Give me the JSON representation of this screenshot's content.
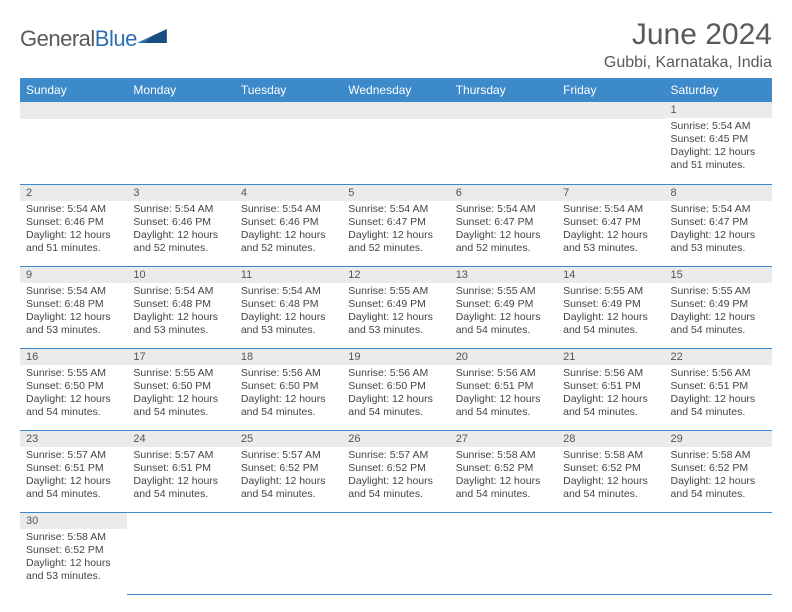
{
  "brand": {
    "part1": "General",
    "part2": "Blue"
  },
  "title": "June 2024",
  "location": "Gubbi, Karnataka, India",
  "colors": {
    "header_bg": "#3c8ac9",
    "header_text": "#ffffff",
    "daynum_bg": "#ebebeb",
    "cell_border": "#3c8ac9",
    "body_text": "#444444",
    "title_text": "#5a5a5a",
    "brand_gray": "#5a5a5a",
    "brand_blue": "#2e6fb3",
    "page_bg": "#ffffff"
  },
  "typography": {
    "title_fontsize": 30,
    "location_fontsize": 16,
    "header_fontsize": 12,
    "body_fontsize": 10.5,
    "font_family": "Arial"
  },
  "weekdays": [
    "Sunday",
    "Monday",
    "Tuesday",
    "Wednesday",
    "Thursday",
    "Friday",
    "Saturday"
  ],
  "leading_blanks": 6,
  "days": [
    {
      "n": 1,
      "sunrise": "5:54 AM",
      "sunset": "6:45 PM",
      "daylight": "12 hours and 51 minutes."
    },
    {
      "n": 2,
      "sunrise": "5:54 AM",
      "sunset": "6:46 PM",
      "daylight": "12 hours and 51 minutes."
    },
    {
      "n": 3,
      "sunrise": "5:54 AM",
      "sunset": "6:46 PM",
      "daylight": "12 hours and 52 minutes."
    },
    {
      "n": 4,
      "sunrise": "5:54 AM",
      "sunset": "6:46 PM",
      "daylight": "12 hours and 52 minutes."
    },
    {
      "n": 5,
      "sunrise": "5:54 AM",
      "sunset": "6:47 PM",
      "daylight": "12 hours and 52 minutes."
    },
    {
      "n": 6,
      "sunrise": "5:54 AM",
      "sunset": "6:47 PM",
      "daylight": "12 hours and 52 minutes."
    },
    {
      "n": 7,
      "sunrise": "5:54 AM",
      "sunset": "6:47 PM",
      "daylight": "12 hours and 53 minutes."
    },
    {
      "n": 8,
      "sunrise": "5:54 AM",
      "sunset": "6:47 PM",
      "daylight": "12 hours and 53 minutes."
    },
    {
      "n": 9,
      "sunrise": "5:54 AM",
      "sunset": "6:48 PM",
      "daylight": "12 hours and 53 minutes."
    },
    {
      "n": 10,
      "sunrise": "5:54 AM",
      "sunset": "6:48 PM",
      "daylight": "12 hours and 53 minutes."
    },
    {
      "n": 11,
      "sunrise": "5:54 AM",
      "sunset": "6:48 PM",
      "daylight": "12 hours and 53 minutes."
    },
    {
      "n": 12,
      "sunrise": "5:55 AM",
      "sunset": "6:49 PM",
      "daylight": "12 hours and 53 minutes."
    },
    {
      "n": 13,
      "sunrise": "5:55 AM",
      "sunset": "6:49 PM",
      "daylight": "12 hours and 54 minutes."
    },
    {
      "n": 14,
      "sunrise": "5:55 AM",
      "sunset": "6:49 PM",
      "daylight": "12 hours and 54 minutes."
    },
    {
      "n": 15,
      "sunrise": "5:55 AM",
      "sunset": "6:49 PM",
      "daylight": "12 hours and 54 minutes."
    },
    {
      "n": 16,
      "sunrise": "5:55 AM",
      "sunset": "6:50 PM",
      "daylight": "12 hours and 54 minutes."
    },
    {
      "n": 17,
      "sunrise": "5:55 AM",
      "sunset": "6:50 PM",
      "daylight": "12 hours and 54 minutes."
    },
    {
      "n": 18,
      "sunrise": "5:56 AM",
      "sunset": "6:50 PM",
      "daylight": "12 hours and 54 minutes."
    },
    {
      "n": 19,
      "sunrise": "5:56 AM",
      "sunset": "6:50 PM",
      "daylight": "12 hours and 54 minutes."
    },
    {
      "n": 20,
      "sunrise": "5:56 AM",
      "sunset": "6:51 PM",
      "daylight": "12 hours and 54 minutes."
    },
    {
      "n": 21,
      "sunrise": "5:56 AM",
      "sunset": "6:51 PM",
      "daylight": "12 hours and 54 minutes."
    },
    {
      "n": 22,
      "sunrise": "5:56 AM",
      "sunset": "6:51 PM",
      "daylight": "12 hours and 54 minutes."
    },
    {
      "n": 23,
      "sunrise": "5:57 AM",
      "sunset": "6:51 PM",
      "daylight": "12 hours and 54 minutes."
    },
    {
      "n": 24,
      "sunrise": "5:57 AM",
      "sunset": "6:51 PM",
      "daylight": "12 hours and 54 minutes."
    },
    {
      "n": 25,
      "sunrise": "5:57 AM",
      "sunset": "6:52 PM",
      "daylight": "12 hours and 54 minutes."
    },
    {
      "n": 26,
      "sunrise": "5:57 AM",
      "sunset": "6:52 PM",
      "daylight": "12 hours and 54 minutes."
    },
    {
      "n": 27,
      "sunrise": "5:58 AM",
      "sunset": "6:52 PM",
      "daylight": "12 hours and 54 minutes."
    },
    {
      "n": 28,
      "sunrise": "5:58 AM",
      "sunset": "6:52 PM",
      "daylight": "12 hours and 54 minutes."
    },
    {
      "n": 29,
      "sunrise": "5:58 AM",
      "sunset": "6:52 PM",
      "daylight": "12 hours and 54 minutes."
    },
    {
      "n": 30,
      "sunrise": "5:58 AM",
      "sunset": "6:52 PM",
      "daylight": "12 hours and 53 minutes."
    }
  ],
  "labels": {
    "sunrise": "Sunrise:",
    "sunset": "Sunset:",
    "daylight": "Daylight:"
  }
}
